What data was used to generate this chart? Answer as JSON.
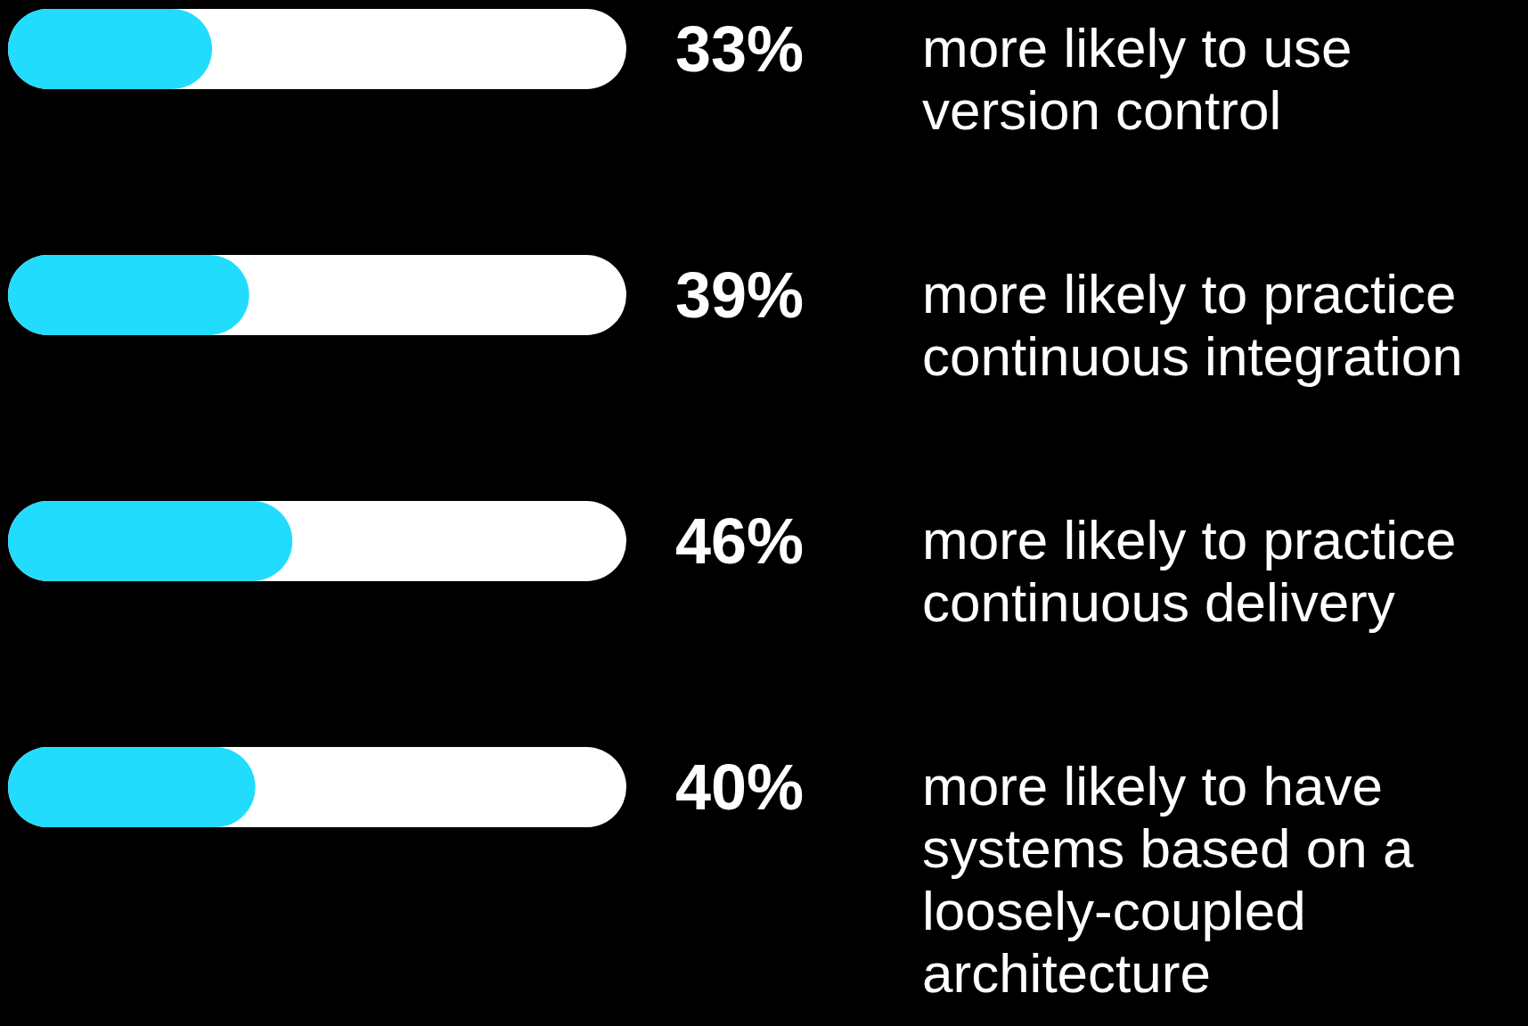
{
  "chart_data": {
    "type": "bar",
    "orientation": "horizontal",
    "categories": [
      "more likely to use version control",
      "more likely to practice continuous integration",
      "more likely to practice continuous delivery",
      "more likely to have systems based on a loosely-coupled architecture"
    ],
    "values": [
      33,
      39,
      46,
      40
    ],
    "color": "#22dcfe",
    "xlim": [
      0,
      100
    ],
    "tick_labels": "y",
    "value_labels": [
      "33%",
      "39%",
      "46%",
      "40%"
    ]
  }
}
